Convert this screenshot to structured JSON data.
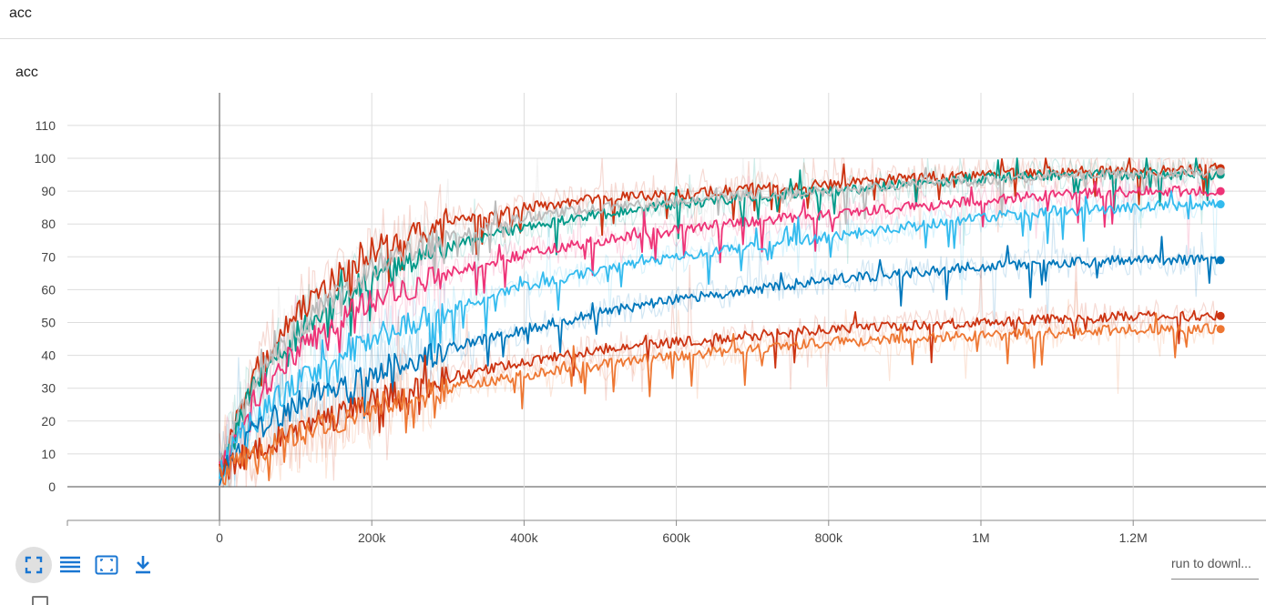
{
  "section": {
    "title": "acc"
  },
  "card": {
    "title": "acc"
  },
  "toolbar": {
    "buttons": [
      {
        "name": "fit-domain",
        "icon": "fullscreen-corners-icon",
        "active": true
      },
      {
        "name": "toggle-log",
        "icon": "list-lines-icon",
        "active": false
      },
      {
        "name": "fit-data",
        "icon": "frame-dashed-icon",
        "active": false
      },
      {
        "name": "download",
        "icon": "download-icon",
        "active": false
      }
    ],
    "run_select_text": "run to downl..."
  },
  "colors": {
    "accent": "#1976d2",
    "grid": "#dddddd",
    "axis": "#888888"
  },
  "chart_data": {
    "type": "line",
    "title": "acc",
    "xlabel": "",
    "ylabel": "",
    "xlim": [
      -200000,
      1370000
    ],
    "ylim": [
      -10,
      120
    ],
    "x_ticks": [
      0,
      200000,
      400000,
      600000,
      800000,
      1000000,
      1200000
    ],
    "x_tick_labels": [
      "0",
      "200k",
      "400k",
      "600k",
      "800k",
      "1M",
      "1.2M"
    ],
    "y_ticks": [
      0,
      10,
      20,
      30,
      40,
      50,
      60,
      70,
      80,
      90,
      100,
      110
    ],
    "y_tick_labels": [
      "0",
      "10",
      "20",
      "30",
      "40",
      "50",
      "60",
      "70",
      "80",
      "90",
      "100",
      "110"
    ],
    "grid": true,
    "legend": "none",
    "series": [
      {
        "color": "#cc3311",
        "x": [
          0,
          25000,
          50000,
          100000,
          150000,
          200000,
          300000,
          400000,
          500000,
          600000,
          700000,
          800000,
          900000,
          1000000,
          1100000,
          1200000,
          1310000
        ],
        "y": [
          4,
          22,
          36,
          52,
          63,
          72,
          81,
          85,
          88,
          89,
          91,
          92,
          94,
          95,
          96,
          96,
          97
        ]
      },
      {
        "color": "#009988",
        "x": [
          0,
          25000,
          50000,
          100000,
          150000,
          200000,
          300000,
          400000,
          500000,
          600000,
          700000,
          800000,
          900000,
          1000000,
          1100000,
          1200000,
          1310000
        ],
        "y": [
          4,
          20,
          32,
          46,
          56,
          64,
          73,
          79,
          83,
          86,
          88,
          90,
          92,
          94,
          95,
          95,
          95
        ]
      },
      {
        "color": "#bbbbbb",
        "x": [
          0,
          25000,
          50000,
          100000,
          150000,
          200000,
          300000,
          400000,
          500000,
          600000,
          700000,
          800000,
          900000,
          1000000,
          1100000,
          1200000,
          1310000
        ],
        "y": [
          4,
          20,
          33,
          47,
          57,
          66,
          76,
          82,
          85,
          87,
          89,
          90,
          92,
          93,
          95,
          95,
          96
        ]
      },
      {
        "color": "#ee3377",
        "x": [
          0,
          25000,
          50000,
          100000,
          150000,
          200000,
          300000,
          400000,
          500000,
          600000,
          700000,
          800000,
          900000,
          1000000,
          1100000,
          1200000,
          1310000
        ],
        "y": [
          4,
          18,
          28,
          41,
          50,
          57,
          65,
          71,
          75,
          78,
          81,
          83,
          85,
          87,
          89,
          90,
          90
        ]
      },
      {
        "color": "#33bbee",
        "x": [
          0,
          25000,
          50000,
          100000,
          150000,
          200000,
          300000,
          400000,
          500000,
          600000,
          700000,
          800000,
          900000,
          1000000,
          1100000,
          1200000,
          1310000
        ],
        "y": [
          3,
          16,
          22,
          31,
          38,
          45,
          54,
          61,
          66,
          70,
          73,
          76,
          79,
          82,
          84,
          85,
          86
        ]
      },
      {
        "color": "#0077bb",
        "x": [
          0,
          25000,
          50000,
          100000,
          150000,
          200000,
          300000,
          400000,
          500000,
          600000,
          700000,
          800000,
          900000,
          1000000,
          1100000,
          1200000,
          1310000
        ],
        "y": [
          3,
          12,
          18,
          25,
          30,
          35,
          42,
          48,
          53,
          57,
          60,
          63,
          65,
          67,
          68,
          69,
          69
        ]
      },
      {
        "color": "#cc3311",
        "x": [
          0,
          25000,
          50000,
          100000,
          150000,
          200000,
          300000,
          400000,
          500000,
          600000,
          700000,
          800000,
          900000,
          1000000,
          1100000,
          1200000,
          1310000
        ],
        "y": [
          3,
          8,
          12,
          17,
          21,
          26,
          33,
          38,
          42,
          44,
          46,
          48,
          49,
          50,
          51,
          52,
          52
        ]
      },
      {
        "color": "#ee7733",
        "x": [
          0,
          25000,
          50000,
          100000,
          150000,
          200000,
          300000,
          400000,
          500000,
          600000,
          700000,
          800000,
          900000,
          1000000,
          1100000,
          1200000,
          1310000
        ],
        "y": [
          3,
          8,
          11,
          16,
          20,
          24,
          30,
          34,
          37,
          40,
          42,
          44,
          45,
          46,
          47,
          48,
          48
        ]
      }
    ]
  }
}
